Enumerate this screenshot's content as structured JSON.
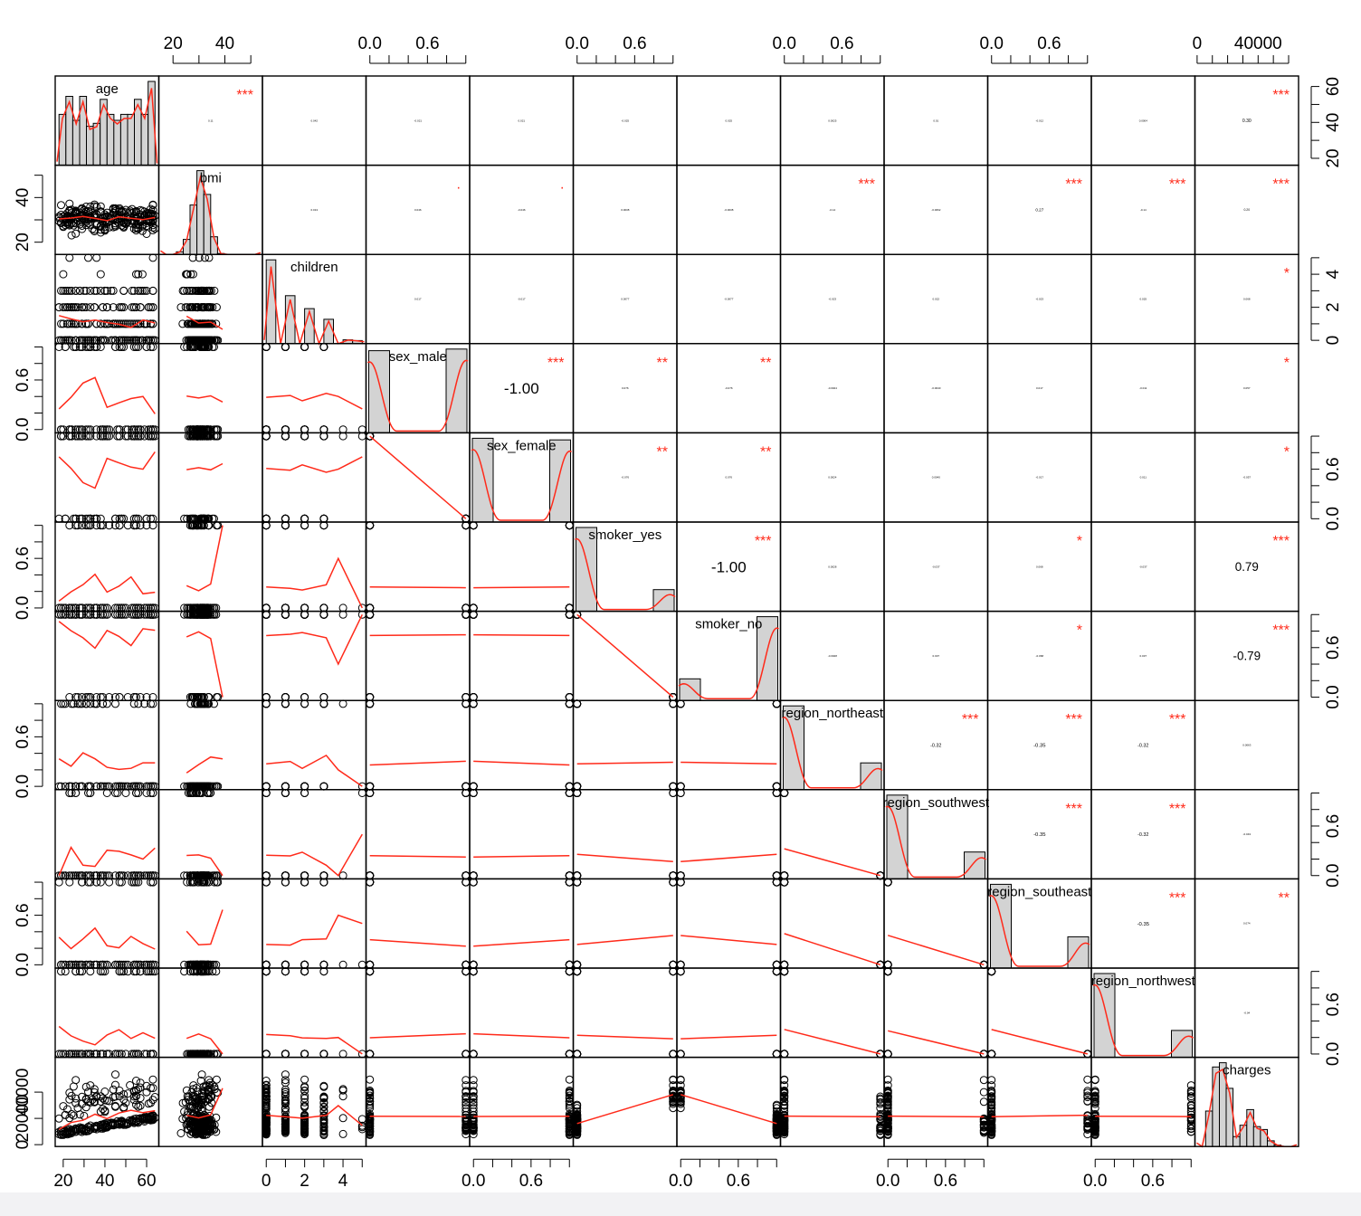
{
  "chart_data": {
    "type": "scatter-matrix",
    "colors": {
      "axis": "#000000",
      "fit": "#ff2a1a",
      "stars": "#ff2a1a",
      "hist_fill": "#d3d3d3"
    },
    "variables": [
      {
        "name": "age",
        "label": "age",
        "range": [
          18,
          64
        ],
        "ticks": [
          20,
          40,
          60
        ],
        "ticks_pos": [
          20,
          30,
          40,
          50,
          60
        ],
        "kind": "cont"
      },
      {
        "name": "bmi",
        "label": "bmi",
        "range": [
          16,
          53
        ],
        "ticks": [
          20,
          40
        ],
        "ticks_pos": [
          20,
          30,
          40,
          50
        ],
        "kind": "cont"
      },
      {
        "name": "children",
        "label": "children",
        "range": [
          0,
          5
        ],
        "ticks": [
          0,
          2,
          4
        ],
        "ticks_pos": [
          0,
          1,
          2,
          3,
          4,
          5
        ],
        "kind": "discrete"
      },
      {
        "name": "sex_male",
        "label": "sex_male",
        "range": [
          0,
          1
        ],
        "ticks": [
          "0.0",
          "0.6"
        ],
        "ticks_pos": [
          0,
          0.2,
          0.4,
          0.6,
          0.8,
          1.0
        ],
        "kind": "binary"
      },
      {
        "name": "sex_female",
        "label": "sex_female",
        "range": [
          0,
          1
        ],
        "ticks": [
          "0.0",
          "0.6"
        ],
        "ticks_pos": [
          0,
          0.2,
          0.4,
          0.6,
          0.8,
          1.0
        ],
        "kind": "binary"
      },
      {
        "name": "smoker_yes",
        "label": "smoker_yes",
        "range": [
          0,
          1
        ],
        "ticks": [
          "0.0",
          "0.6"
        ],
        "ticks_pos": [
          0,
          0.2,
          0.4,
          0.6,
          0.8,
          1.0
        ],
        "kind": "binary"
      },
      {
        "name": "smoker_no",
        "label": "smoker_no",
        "range": [
          0,
          1
        ],
        "ticks": [
          "0.0",
          "0.6"
        ],
        "ticks_pos": [
          0,
          0.2,
          0.4,
          0.6,
          0.8,
          1.0
        ],
        "kind": "binary"
      },
      {
        "name": "region_northeast",
        "label": "region_northeast",
        "range": [
          0,
          1
        ],
        "ticks": [
          "0.0",
          "0.6"
        ],
        "ticks_pos": [
          0,
          0.2,
          0.4,
          0.6,
          0.8,
          1.0
        ],
        "kind": "binary"
      },
      {
        "name": "region_southwest",
        "label": "region_southwest",
        "range": [
          0,
          1
        ],
        "ticks": [
          "0.0",
          "0.6"
        ],
        "ticks_pos": [
          0,
          0.2,
          0.4,
          0.6,
          0.8,
          1.0
        ],
        "kind": "binary"
      },
      {
        "name": "region_southeast",
        "label": "region_southeast",
        "range": [
          0,
          1
        ],
        "ticks": [
          "0.0",
          "0.6"
        ],
        "ticks_pos": [
          0,
          0.2,
          0.4,
          0.6,
          0.8,
          1.0
        ],
        "kind": "binary"
      },
      {
        "name": "region_northwest",
        "label": "region_northwest",
        "range": [
          0,
          1
        ],
        "ticks": [
          "0.0",
          "0.6"
        ],
        "ticks_pos": [
          0,
          0.2,
          0.4,
          0.6,
          0.8,
          1.0
        ],
        "kind": "binary"
      },
      {
        "name": "charges",
        "label": "charges",
        "range": [
          1100,
          64000
        ],
        "ticks": [
          0,
          40000
        ],
        "ticks_pos": [
          0,
          10000,
          20000,
          30000,
          40000,
          50000,
          60000
        ],
        "left_ticks": [
          0,
          20000,
          40000
        ],
        "kind": "cont"
      }
    ],
    "correlations": {
      "0-1": [
        "0.11",
        "***"
      ],
      "0-2": [
        "0.042",
        ""
      ],
      "0-3": [
        "-0.021",
        ""
      ],
      "0-4": [
        "0.021",
        ""
      ],
      "0-5": [
        "-0.025",
        ""
      ],
      "0-6": [
        "0.025",
        ""
      ],
      "0-7": [
        "0.0025",
        ""
      ],
      "0-8": [
        "0.01",
        ""
      ],
      "0-9": [
        "-0.012",
        ""
      ],
      "0-10": [
        "0.0004",
        ""
      ],
      "0-11": [
        "0.30",
        "***"
      ],
      "1-2": [
        "0.013",
        ""
      ],
      "1-3": [
        "0.046",
        "."
      ],
      "1-4": [
        "-0.046",
        "."
      ],
      "1-5": [
        "0.0038",
        ""
      ],
      "1-6": [
        "-0.0038",
        ""
      ],
      "1-7": [
        "-0.14",
        "***"
      ],
      "1-8": [
        "-0.0062",
        ""
      ],
      "1-9": [
        "0.27",
        "***"
      ],
      "1-10": [
        "-0.14",
        "***"
      ],
      "1-11": [
        "0.20",
        "***"
      ],
      "2-3": [
        "0.017",
        ""
      ],
      "2-4": [
        "-0.017",
        ""
      ],
      "2-5": [
        "0.0077",
        ""
      ],
      "2-6": [
        "-0.0077",
        ""
      ],
      "2-7": [
        "-0.023",
        ""
      ],
      "2-8": [
        "0.022",
        ""
      ],
      "2-9": [
        "-0.023",
        ""
      ],
      "2-10": [
        "0.025",
        ""
      ],
      "2-11": [
        "0.068",
        "*"
      ],
      "3-4": [
        "-1.00",
        "***"
      ],
      "3-5": [
        "0.076",
        "**"
      ],
      "3-6": [
        "-0.076",
        "**"
      ],
      "3-7": [
        "-0.0024",
        ""
      ],
      "3-8": [
        "-0.0040",
        ""
      ],
      "3-9": [
        "0.017",
        ""
      ],
      "3-10": [
        "-0.011",
        ""
      ],
      "3-11": [
        "0.057",
        "*"
      ],
      "4-5": [
        "-0.076",
        "**"
      ],
      "4-6": [
        "0.076",
        "**"
      ],
      "4-7": [
        "0.0024",
        ""
      ],
      "4-8": [
        "0.0040",
        ""
      ],
      "4-9": [
        "-0.017",
        ""
      ],
      "4-10": [
        "0.011",
        ""
      ],
      "4-11": [
        "-0.057",
        "*"
      ],
      "5-6": [
        "-1.00",
        "***"
      ],
      "5-7": [
        "0.0028",
        ""
      ],
      "5-8": [
        "-0.037",
        ""
      ],
      "5-9": [
        "0.068",
        "*"
      ],
      "5-10": [
        "-0.037",
        ""
      ],
      "5-11": [
        "0.79",
        "***"
      ],
      "6-7": [
        "-0.0028",
        ""
      ],
      "6-8": [
        "0.037",
        ""
      ],
      "6-9": [
        "-0.068",
        "*"
      ],
      "6-10": [
        "0.037",
        ""
      ],
      "6-11": [
        "-0.79",
        "***"
      ],
      "7-8": [
        "-0.32",
        "***"
      ],
      "7-9": [
        "-0.35",
        "***"
      ],
      "7-10": [
        "-0.32",
        "***"
      ],
      "7-11": [
        "0.0063",
        ""
      ],
      "8-9": [
        "-0.35",
        "***"
      ],
      "8-10": [
        "-0.32",
        "***"
      ],
      "8-11": [
        "-0.043",
        ""
      ],
      "9-10": [
        "-0.35",
        "***"
      ],
      "9-11": [
        "0.074",
        "**"
      ],
      "10-11": [
        "-0.04",
        ""
      ]
    },
    "binary_means": {
      "sex_male": 0.505,
      "sex_female": 0.495,
      "smoker_yes": 0.205,
      "smoker_no": 0.795,
      "region_northeast": 0.242,
      "region_southwest": 0.243,
      "region_southeast": 0.272,
      "region_northwest": 0.243
    },
    "children_distribution": [
      0.43,
      0.24,
      0.18,
      0.12,
      0.02,
      0.01
    ]
  }
}
